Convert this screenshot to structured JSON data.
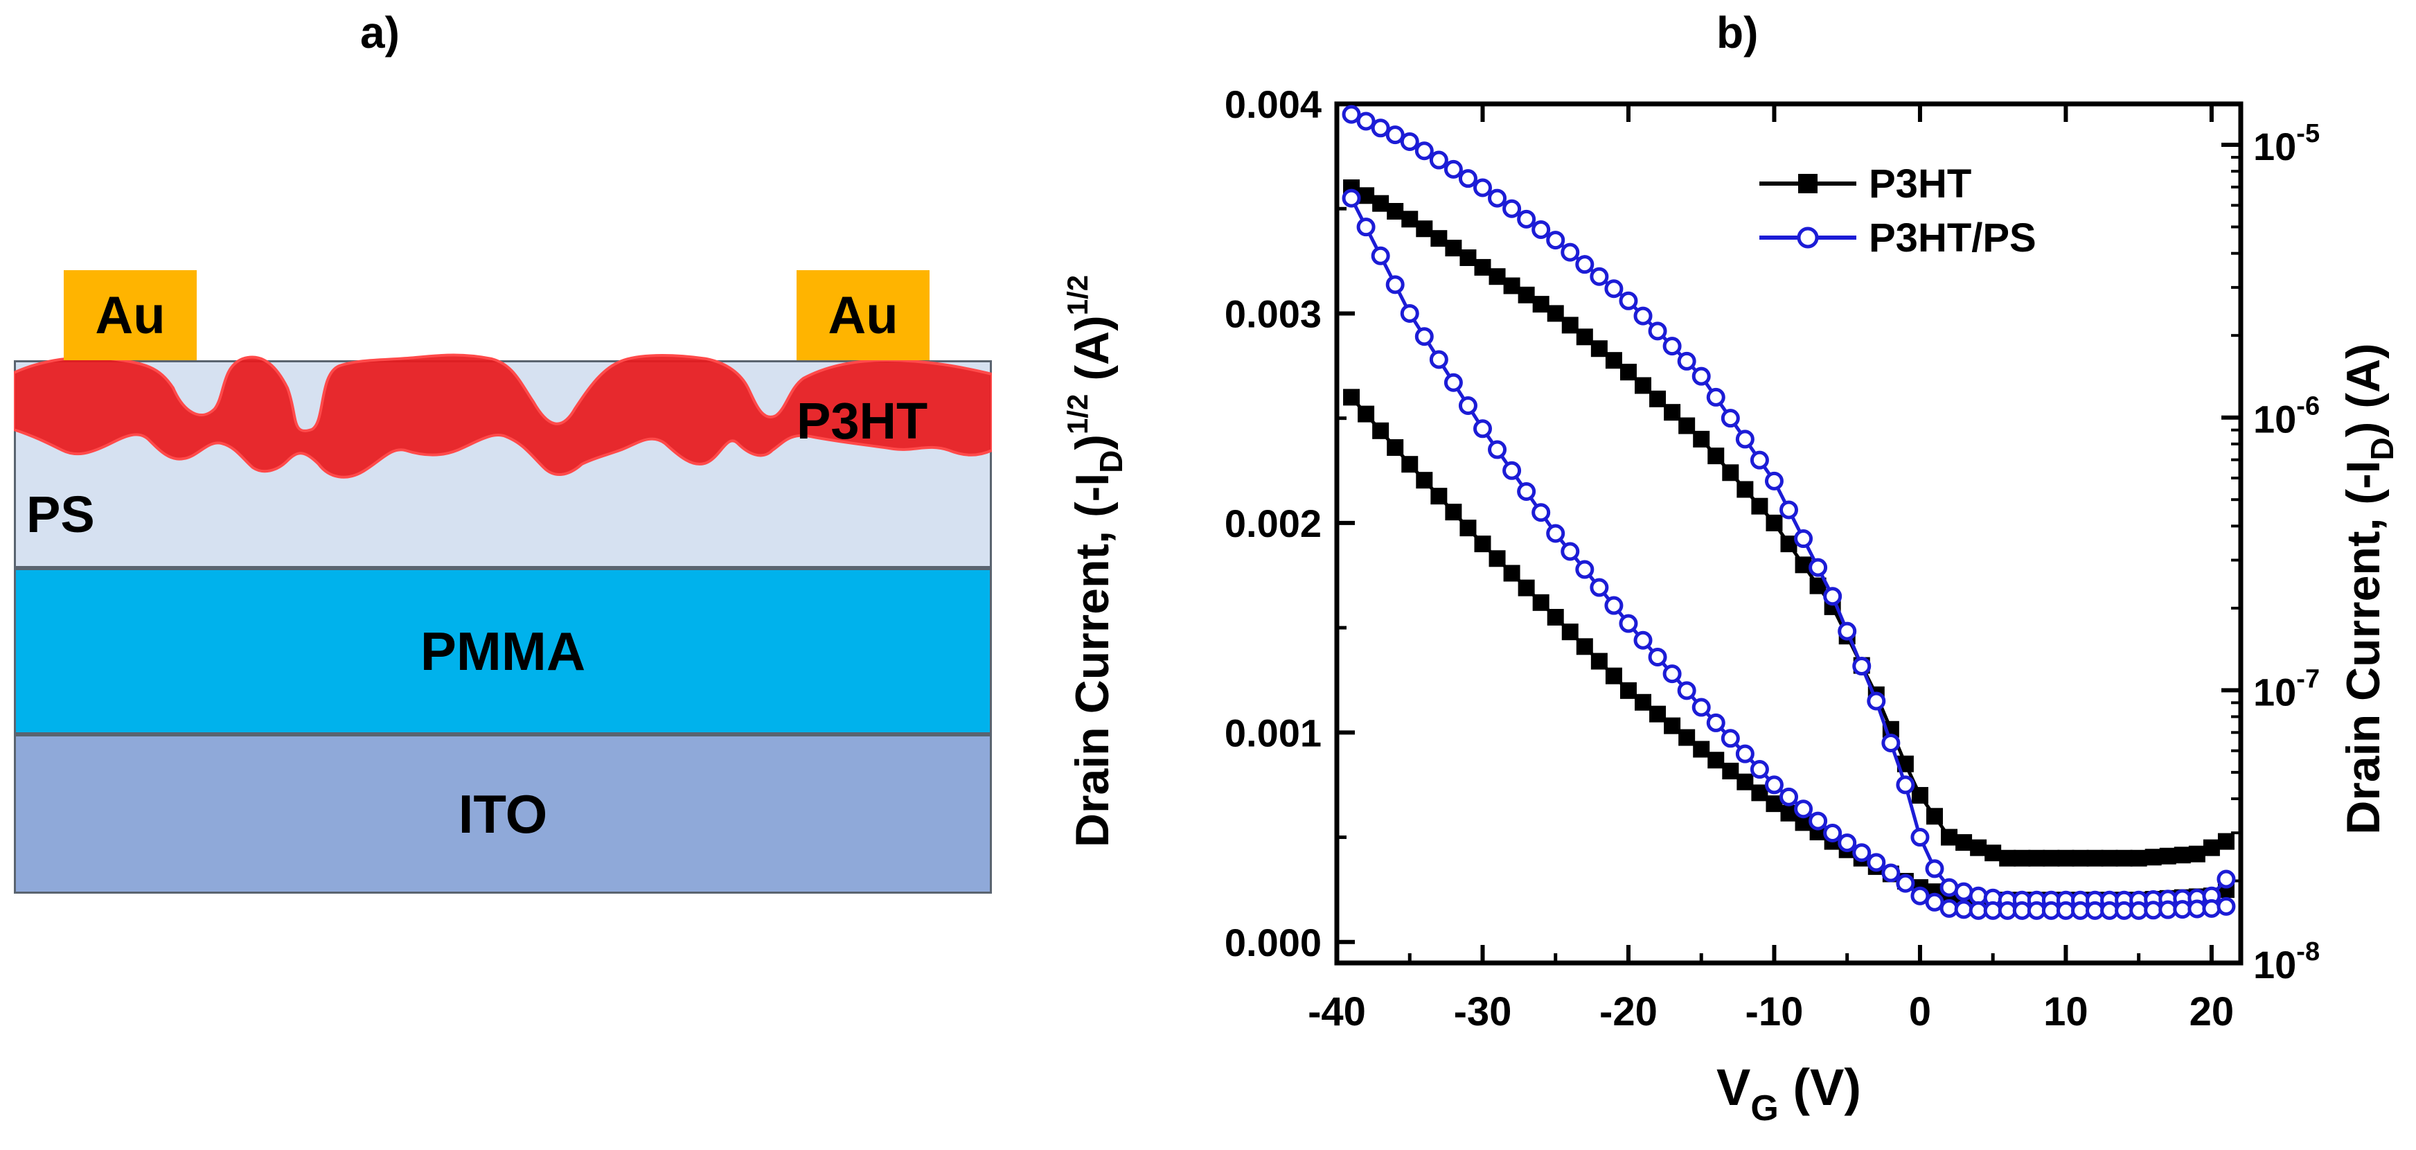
{
  "panels": {
    "a": {
      "label": "a)",
      "layers": {
        "au_left": "Au",
        "au_right": "Au",
        "p3ht": "P3HT",
        "ps": "PS",
        "pmma": "PMMA",
        "ito": "ITO"
      },
      "colors": {
        "au": "#ffb400",
        "p3ht": "#e8191c",
        "ps": "#d6e1f1",
        "pmma": "#00b2ec",
        "ito": "#8fa9d9"
      }
    },
    "b": {
      "label": "b)"
    }
  },
  "chart_data": {
    "type": "line",
    "xlabel_main": "V",
    "xlabel_sub": "G",
    "xlabel_unit": " (V)",
    "ylabel_left_parts": [
      "Drain Current, (-I",
      "D",
      ")",
      "1/2",
      " (A)",
      "1/2"
    ],
    "ylabel_right_parts": [
      "Drain Current, (-I",
      "D",
      ") (A)"
    ],
    "xlim": [
      -40,
      22
    ],
    "ylim_left": [
      -0.0001,
      0.004
    ],
    "ylim_right_log10": [
      -8,
      -4.85
    ],
    "x_ticks": [
      -40,
      -30,
      -20,
      -10,
      0,
      10,
      20
    ],
    "y_left_ticks": [
      "0.000",
      "0.001",
      "0.002",
      "0.003",
      "0.004"
    ],
    "y_left_tick_values": [
      0.0,
      0.001,
      0.002,
      0.003,
      0.004
    ],
    "y_right_ticks": [
      {
        "base": "10",
        "exp": "-8",
        "value": -8
      },
      {
        "base": "10",
        "exp": "-7",
        "value": -7
      },
      {
        "base": "10",
        "exp": "-6",
        "value": -6
      },
      {
        "base": "10",
        "exp": "-5",
        "value": -5
      }
    ],
    "legend_placement": "top-right",
    "series": [
      {
        "name": "P3HT",
        "color": "#000000",
        "marker": "filled-square",
        "curves": [
          {
            "axis": "left",
            "x": [
              -39,
              -35,
              -30,
              -25,
              -20,
              -15,
              -10,
              -6,
              -3,
              -1,
              0,
              1,
              2,
              4,
              6,
              10,
              15,
              19,
              20,
              21
            ],
            "y": [
              0.0036,
              0.00345,
              0.00322,
              0.003,
              0.00272,
              0.0024,
              0.002,
              0.0016,
              0.00118,
              0.00085,
              0.0007,
              0.0006,
              0.0005,
              0.00045,
              0.0004,
              0.0004,
              0.0004,
              0.00042,
              0.00045,
              0.00048
            ]
          },
          {
            "axis": "left",
            "x": [
              -39,
              -35,
              -30,
              -25,
              -20,
              -15,
              -10,
              -6,
              -3,
              -1,
              0,
              2,
              4,
              6,
              10,
              15,
              20,
              21
            ],
            "y": [
              0.0026,
              0.00228,
              0.0019,
              0.00155,
              0.0012,
              0.00092,
              0.00066,
              0.00048,
              0.00036,
              0.00029,
              0.00026,
              0.00022,
              0.0002,
              0.0002,
              0.0002,
              0.0002,
              0.00022,
              0.00025
            ]
          }
        ]
      },
      {
        "name": "P3HT/PS",
        "color": "#1c1cd6",
        "marker": "open-circle",
        "curves": [
          {
            "axis": "left",
            "x": [
              -39,
              -35,
              -30,
              -25,
              -20,
              -15,
              -10,
              -6,
              -3,
              -1,
              0,
              1,
              2,
              4,
              6,
              10,
              15,
              19,
              20,
              21
            ],
            "y": [
              0.00395,
              0.00382,
              0.0036,
              0.00335,
              0.00306,
              0.0027,
              0.0022,
              0.00165,
              0.00115,
              0.00075,
              0.0005,
              0.00035,
              0.00026,
              0.00022,
              0.0002,
              0.0002,
              0.0002,
              0.00021,
              0.00022,
              0.0003
            ]
          },
          {
            "axis": "left",
            "x": [
              -39,
              -35,
              -30,
              -25,
              -20,
              -15,
              -10,
              -6,
              -3,
              -1,
              0,
              2,
              4,
              6,
              10,
              15,
              20,
              21
            ],
            "y": [
              0.00355,
              0.003,
              0.00245,
              0.00195,
              0.00152,
              0.00112,
              0.00075,
              0.00052,
              0.00038,
              0.00028,
              0.00022,
              0.00016,
              0.00015,
              0.00015,
              0.00015,
              0.00015,
              0.00016,
              0.00017
            ]
          }
        ]
      }
    ]
  }
}
